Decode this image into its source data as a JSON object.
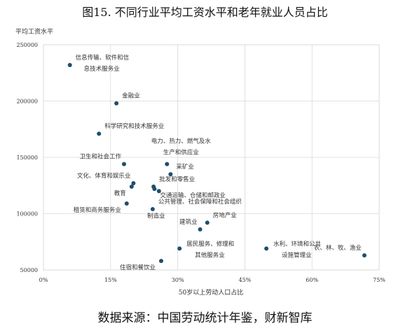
{
  "figure": {
    "title": "图15. 不同行业平均工资水平和老年就业人员占比",
    "source": "数据来源：中国劳动统计年鉴，财新智库"
  },
  "chart_data": {
    "type": "scatter",
    "title": "",
    "xlabel": "50岁以上劳动人口占比",
    "ylabel": "平均工资水平",
    "xlim": [
      0,
      0.75
    ],
    "ylim": [
      50000,
      250000
    ],
    "x_ticks": [
      {
        "value": 0,
        "label": "0%"
      },
      {
        "value": 0.15,
        "label": "15%"
      },
      {
        "value": 0.3,
        "label": "30%"
      },
      {
        "value": 0.45,
        "label": "45%"
      },
      {
        "value": 0.6,
        "label": "60%"
      },
      {
        "value": 0.75,
        "label": "75%"
      }
    ],
    "y_ticks": [
      {
        "value": 50000,
        "label": "50000"
      },
      {
        "value": 100000,
        "label": "100000"
      },
      {
        "value": 150000,
        "label": "150000"
      },
      {
        "value": 200000,
        "label": "200000"
      },
      {
        "value": 250000,
        "label": "250000"
      }
    ],
    "grid": true,
    "point_color": "#1f4e6e",
    "points": [
      {
        "label": [
          "信息传输、软件和信",
          "息技术服务业"
        ],
        "x": 0.059,
        "y": 232000,
        "anchor": "right-up"
      },
      {
        "label": [
          "金融业"
        ],
        "x": 0.163,
        "y": 198000,
        "anchor": "right-up"
      },
      {
        "label": [
          "科学研究和技术服务业"
        ],
        "x": 0.124,
        "y": 171000,
        "anchor": "right-up"
      },
      {
        "label": [
          "卫生和社会工作"
        ],
        "x": 0.18,
        "y": 144000,
        "anchor": "left-up"
      },
      {
        "label": [
          "电力、热力、燃气及水",
          "生产和供应业"
        ],
        "x": 0.276,
        "y": 144000,
        "anchor": "center-up2"
      },
      {
        "label": [
          "采矿业"
        ],
        "x": 0.284,
        "y": 135000,
        "anchor": "right-up"
      },
      {
        "label": [
          "文化、体育和娱乐业"
        ],
        "x": 0.201,
        "y": 127000,
        "anchor": "left-up"
      },
      {
        "label": [
          "教育"
        ],
        "x": 0.197,
        "y": 124000,
        "anchor": "left-down"
      },
      {
        "label": [
          "批发和零售业"
        ],
        "x": 0.246,
        "y": 124000,
        "anchor": "right-up"
      },
      {
        "label": [
          "交通运输、仓储和邮政业"
        ],
        "x": 0.248,
        "y": 122000,
        "anchor": "right-down"
      },
      {
        "label": [
          "租赁和商务服务业"
        ],
        "x": 0.186,
        "y": 109000,
        "anchor": "left-down"
      },
      {
        "label": [
          "公共管理、社会保障和社会组织"
        ],
        "x": 0.244,
        "y": 104000,
        "anchor": "right-up"
      },
      {
        "label": [
          "制造业"
        ],
        "x": 0.258,
        "y": 120000,
        "anchor": "down-far"
      },
      {
        "label": [
          "房地产业"
        ],
        "x": 0.366,
        "y": 92000,
        "anchor": "right-up"
      },
      {
        "label": [
          "建筑业"
        ],
        "x": 0.35,
        "y": 86000,
        "anchor": "left-up"
      },
      {
        "label": [
          "居民服务、修理和",
          "其他服务业"
        ],
        "x": 0.304,
        "y": 69000,
        "anchor": "right-two"
      },
      {
        "label": [
          "住宿和餐饮业"
        ],
        "x": 0.263,
        "y": 58000,
        "anchor": "left-down"
      },
      {
        "label": [
          "水利、环境和公共",
          "设施管理业"
        ],
        "x": 0.498,
        "y": 69000,
        "anchor": "right-two"
      },
      {
        "label": [
          "农、林、牧、渔业"
        ],
        "x": 0.717,
        "y": 63000,
        "anchor": "left-up"
      }
    ]
  }
}
